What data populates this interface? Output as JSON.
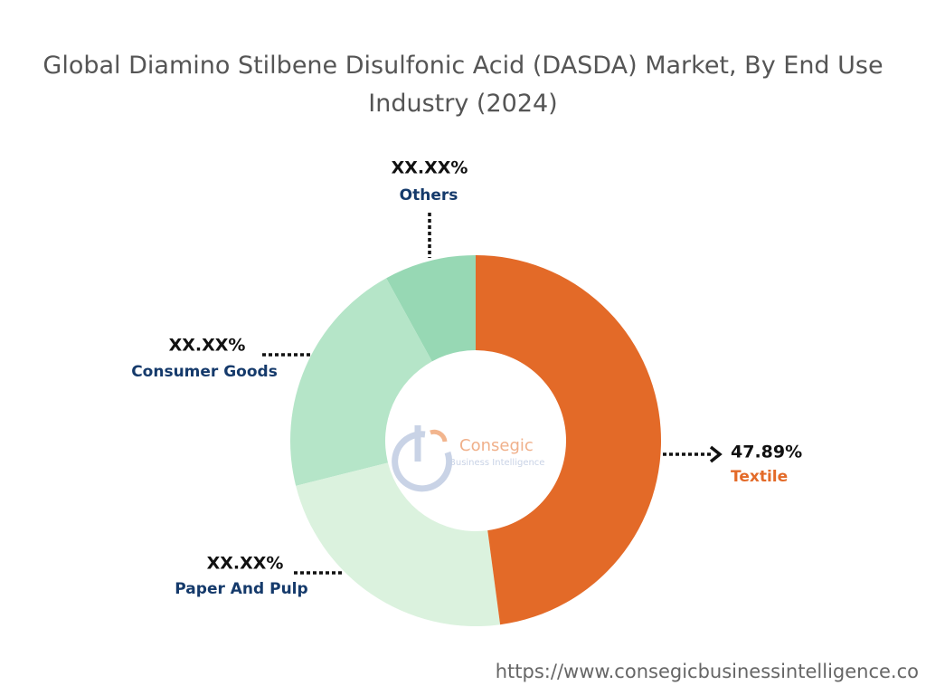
{
  "chart_data": {
    "type": "pie",
    "title": "Global Diamino Stilbene Disulfonic Acid (DASDA) Market, By End Use Industry (2024)",
    "categories": [
      "Textile",
      "Paper And Pulp",
      "Consumer Goods",
      "Others"
    ],
    "values": [
      47.89,
      23.2,
      20.9,
      8.01
    ],
    "value_labels": [
      "47.89%",
      "XX.XX%",
      "XX.XX%",
      "XX.XX%"
    ],
    "colors": [
      "#e36a28",
      "#dbf2de",
      "#b5e5c8",
      "#97d8b4"
    ],
    "label_colors": [
      "#e36a28",
      "#153a6b",
      "#153a6b",
      "#153a6b"
    ]
  },
  "logo": {
    "name": "Consegic",
    "tagline": "Business Intelligence"
  },
  "footer": {
    "url": "https://www.consegicbusinessintelligence.co"
  }
}
